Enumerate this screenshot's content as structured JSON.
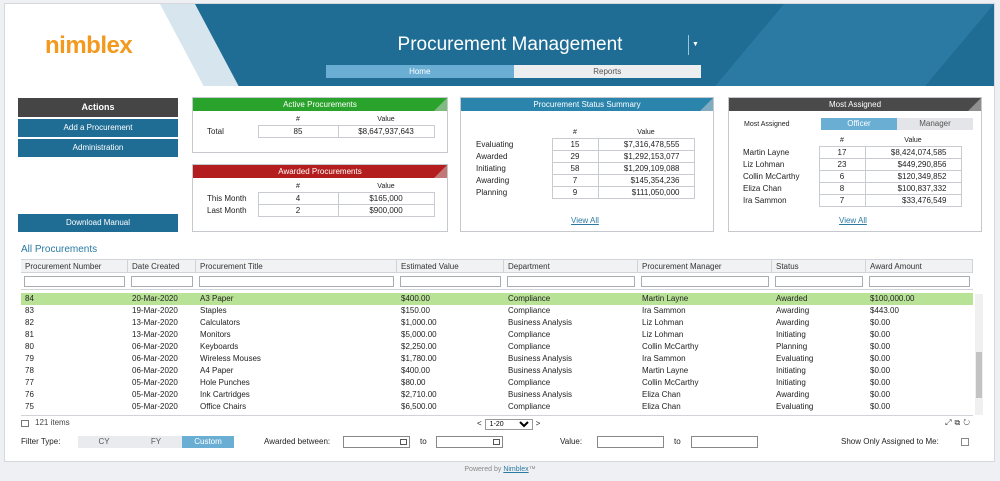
{
  "header": {
    "logo": "nimblex",
    "title": "Procurement Management",
    "tabs": [
      {
        "label": "Home",
        "active": true
      },
      {
        "label": "Reports",
        "active": false
      }
    ]
  },
  "actions": {
    "title": "Actions",
    "add_label": "Add a Procurement",
    "admin_label": "Administration",
    "download_label": "Download Manual"
  },
  "active_procurements": {
    "title": "Active Procurements",
    "col_count": "#",
    "col_value": "Value",
    "rows": [
      {
        "label": "Total",
        "count": "85",
        "value": "$8,647,937,643"
      }
    ]
  },
  "awarded_procurements": {
    "title": "Awarded Procurements",
    "col_count": "#",
    "col_value": "Value",
    "rows": [
      {
        "label": "This Month",
        "count": "4",
        "value": "$165,000"
      },
      {
        "label": "Last Month",
        "count": "2",
        "value": "$900,000"
      }
    ]
  },
  "status_summary": {
    "title": "Procurement Status Summary",
    "col_count": "#",
    "col_value": "Value",
    "rows": [
      {
        "label": "Evaluating",
        "count": "15",
        "value": "$7,316,478,555"
      },
      {
        "label": "Awarded",
        "count": "29",
        "value": "$1,292,153,077"
      },
      {
        "label": "Initiating",
        "count": "58",
        "value": "$1,209,109,088"
      },
      {
        "label": "Awarding",
        "count": "7",
        "value": "$145,354,236"
      },
      {
        "label": "Planning",
        "count": "9",
        "value": "$111,050,000"
      }
    ],
    "view_all": "View All"
  },
  "most_assigned": {
    "title": "Most Assigned",
    "label": "Most Assigned",
    "toggle": {
      "officer": "Officer",
      "manager": "Manager",
      "selected": "Officer"
    },
    "col_count": "#",
    "col_value": "Value",
    "rows": [
      {
        "label": "Martin Layne",
        "count": "17",
        "value": "$8,424,074,585"
      },
      {
        "label": "Liz Lohman",
        "count": "23",
        "value": "$449,290,856"
      },
      {
        "label": "Collin McCarthy",
        "count": "6",
        "value": "$120,349,852"
      },
      {
        "label": "Eliza Chan",
        "count": "8",
        "value": "$100,837,332"
      },
      {
        "label": "Ira Sammon",
        "count": "7",
        "value": "$33,476,549"
      }
    ],
    "view_all": "View All"
  },
  "grid": {
    "title": "All Procurements",
    "columns": [
      "Procurement Number",
      "Date Created",
      "Procurement Title",
      "Estimated Value",
      "Department",
      "Procurement Manager",
      "Status",
      "Award Amount"
    ],
    "rows": [
      [
        "84",
        "20-Mar-2020",
        "A3 Paper",
        "$400.00",
        "Compliance",
        "Martin Layne",
        "Awarded",
        "$100,000.00"
      ],
      [
        "83",
        "19-Mar-2020",
        "Staples",
        "$150.00",
        "Compliance",
        "Ira Sammon",
        "Awarding",
        "$443.00"
      ],
      [
        "82",
        "13-Mar-2020",
        "Calculators",
        "$1,000.00",
        "Business Analysis",
        "Liz Lohman",
        "Awarding",
        "$0.00"
      ],
      [
        "81",
        "13-Mar-2020",
        "Monitors",
        "$5,000.00",
        "Compliance",
        "Liz Lohman",
        "Initiating",
        "$0.00"
      ],
      [
        "80",
        "06-Mar-2020",
        "Keyboards",
        "$2,250.00",
        "Compliance",
        "Collin McCarthy",
        "Planning",
        "$0.00"
      ],
      [
        "79",
        "06-Mar-2020",
        "Wireless Mouses",
        "$1,780.00",
        "Business Analysis",
        "Ira Sammon",
        "Evaluating",
        "$0.00"
      ],
      [
        "78",
        "06-Mar-2020",
        "A4 Paper",
        "$400.00",
        "Business Analysis",
        "Martin Layne",
        "Initiating",
        "$0.00"
      ],
      [
        "77",
        "05-Mar-2020",
        "Hole Punches",
        "$80.00",
        "Compliance",
        "Collin McCarthy",
        "Initiating",
        "$0.00"
      ],
      [
        "76",
        "05-Mar-2020",
        "Ink Cartridges",
        "$2,710.00",
        "Business Analysis",
        "Eliza Chan",
        "Awarding",
        "$0.00"
      ],
      [
        "75",
        "05-Mar-2020",
        "Office Chairs",
        "$6,500.00",
        "Compliance",
        "Eliza Chan",
        "Evaluating",
        "$0.00"
      ]
    ],
    "selected_row": 0,
    "items_count": "121 items",
    "pager_value": "1-20",
    "pager_prev": "<",
    "pager_next": ">"
  },
  "filter": {
    "filter_type_label": "Filter Type:",
    "cy": "CY",
    "fy": "FY",
    "custom": "Custom",
    "selected": "Custom",
    "awarded_between": "Awarded between:",
    "to1": "to",
    "value_label": "Value:",
    "to2": "to",
    "assigned_label": "Show Only Assigned to Me:"
  },
  "powered": {
    "prefix": "Powered by ",
    "link": "Nimblex",
    "suffix": "™"
  },
  "colors": {
    "brand_blue": "#1f6d95",
    "accent_orange": "#f39a1e",
    "green": "#2aa32c",
    "red": "#b31d1d",
    "selected_row": "#b8e296"
  }
}
